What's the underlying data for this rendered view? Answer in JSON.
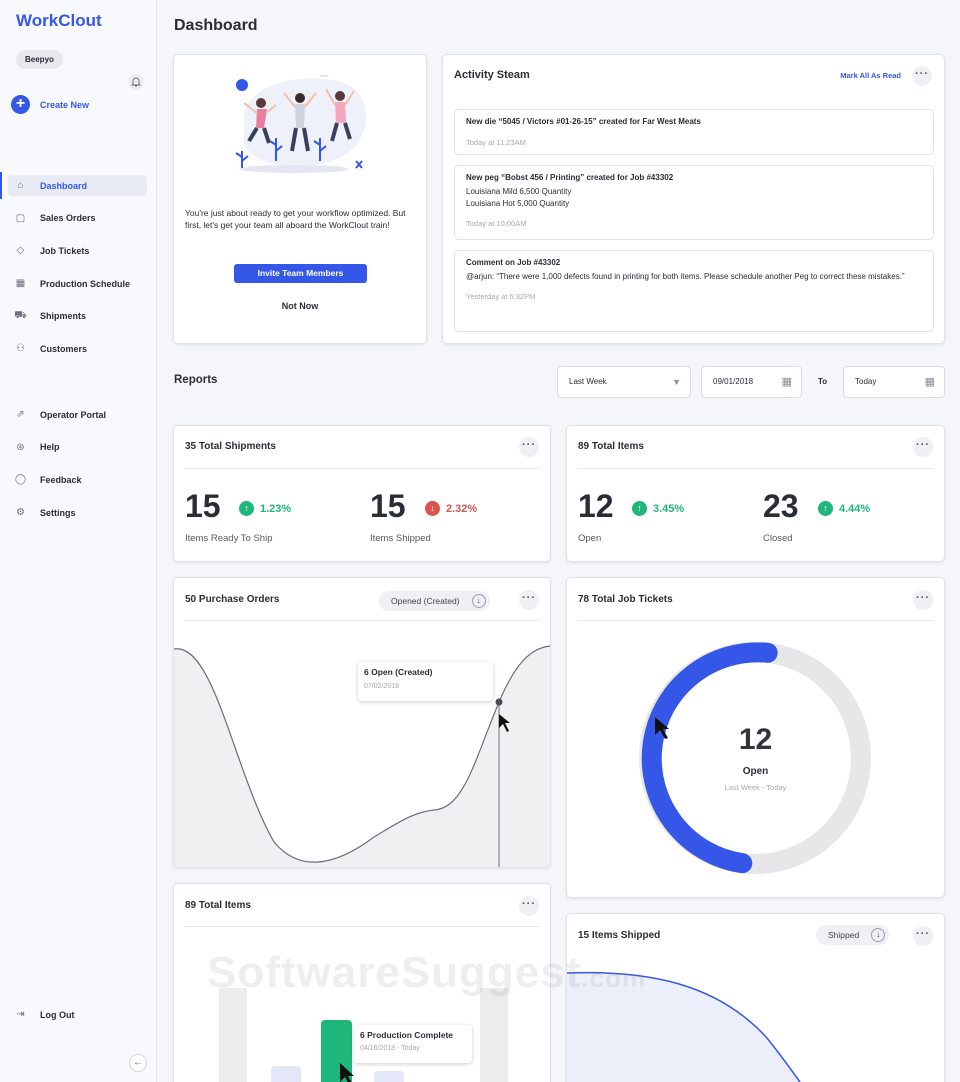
{
  "app": {
    "name": "WorkClout",
    "user": "Beepyo",
    "create_new": "Create New"
  },
  "sidebar": {
    "items": [
      {
        "label": "Dashboard",
        "icon": "home-icon",
        "glyph": "⌂"
      },
      {
        "label": "Sales Orders",
        "icon": "bag-icon",
        "glyph": "▢"
      },
      {
        "label": "Job Tickets",
        "icon": "tag-icon",
        "glyph": "◇"
      },
      {
        "label": "Production Schedule",
        "icon": "calendar-icon",
        "glyph": "▦"
      },
      {
        "label": "Shipments",
        "icon": "truck-icon",
        "glyph": "⛟"
      },
      {
        "label": "Customers",
        "icon": "users-icon",
        "glyph": "⚇"
      }
    ],
    "secondary": [
      {
        "label": "Operator Portal",
        "icon": "external-link-icon",
        "glyph": "⇗"
      },
      {
        "label": "Help",
        "icon": "lifebuoy-icon",
        "glyph": "⊛"
      },
      {
        "label": "Feedback",
        "icon": "chat-icon",
        "glyph": "◯"
      },
      {
        "label": "Settings",
        "icon": "gear-icon",
        "glyph": "⚙"
      }
    ],
    "logout": "Log Out"
  },
  "page": {
    "title": "Dashboard",
    "reports_label": "Reports"
  },
  "welcome": {
    "text": "You're just about ready to get your workflow optimized. But first, let's get your team all aboard the WorkClout train!",
    "invite_button": "Invite Team Members",
    "not_now": "Not Now"
  },
  "activity": {
    "title": "Activity Steam",
    "mark_all": "Mark All As Read",
    "entries": [
      {
        "title": "New die “5045 / Victors #01-26-15” created for Far West Meats",
        "lines": [],
        "time": "Today at 11:23AM"
      },
      {
        "title": "New peg “Bobst 456 / Printing” created for Job #43302",
        "lines": [
          "Louisiana Mild 6,500 Quantity",
          "Louisiana Hot 5,000 Quantity"
        ],
        "time": "Today at 10:00AM"
      },
      {
        "title": "Comment on Job #43302",
        "lines": [
          "@arjun: “There were 1,000 defects found in printing for both items. Please schedule another Peg to correct these mistakes.”"
        ],
        "time": "Yesterday at 5:32PM"
      }
    ]
  },
  "filters": {
    "range": "Last Week",
    "from": "09/01/2018",
    "to_label": "To",
    "to": "Today"
  },
  "shipments": {
    "title": "35 Total Shipments",
    "a_value": "15",
    "a_change": "1.23%",
    "a_label": "Items Ready To Ship",
    "b_value": "15",
    "b_change": "2.32%",
    "b_label": "Items Shipped"
  },
  "items": {
    "title": "89 Total Items",
    "a_value": "12",
    "a_change": "3.45%",
    "a_label": "Open",
    "b_value": "23",
    "b_change": "4.44%",
    "b_label": "Closed"
  },
  "purchase_orders": {
    "title": "50 Purchase Orders",
    "filter": "Opened (Created)",
    "tooltip_title": "6 Open (Created)",
    "tooltip_date": "07/02/2018"
  },
  "job_tickets": {
    "title": "78 Total Job Tickets",
    "value": "12",
    "label": "Open",
    "range": "Last Week - Today",
    "fraction": 0.5
  },
  "total_items2": {
    "title": "89 Total Items",
    "tooltip_title": "6 Production Complete",
    "tooltip_date": "04/16/2018 - Today"
  },
  "items_shipped": {
    "title": "15 Items Shipped",
    "filter": "Shipped"
  },
  "watermark": {
    "main": "SoftwareSuggest",
    "suffix": ".com"
  },
  "colors": {
    "accent": "#3557e8",
    "up": "#1fb67a",
    "down": "#d9534f",
    "bar_green": "#1fb67a"
  }
}
